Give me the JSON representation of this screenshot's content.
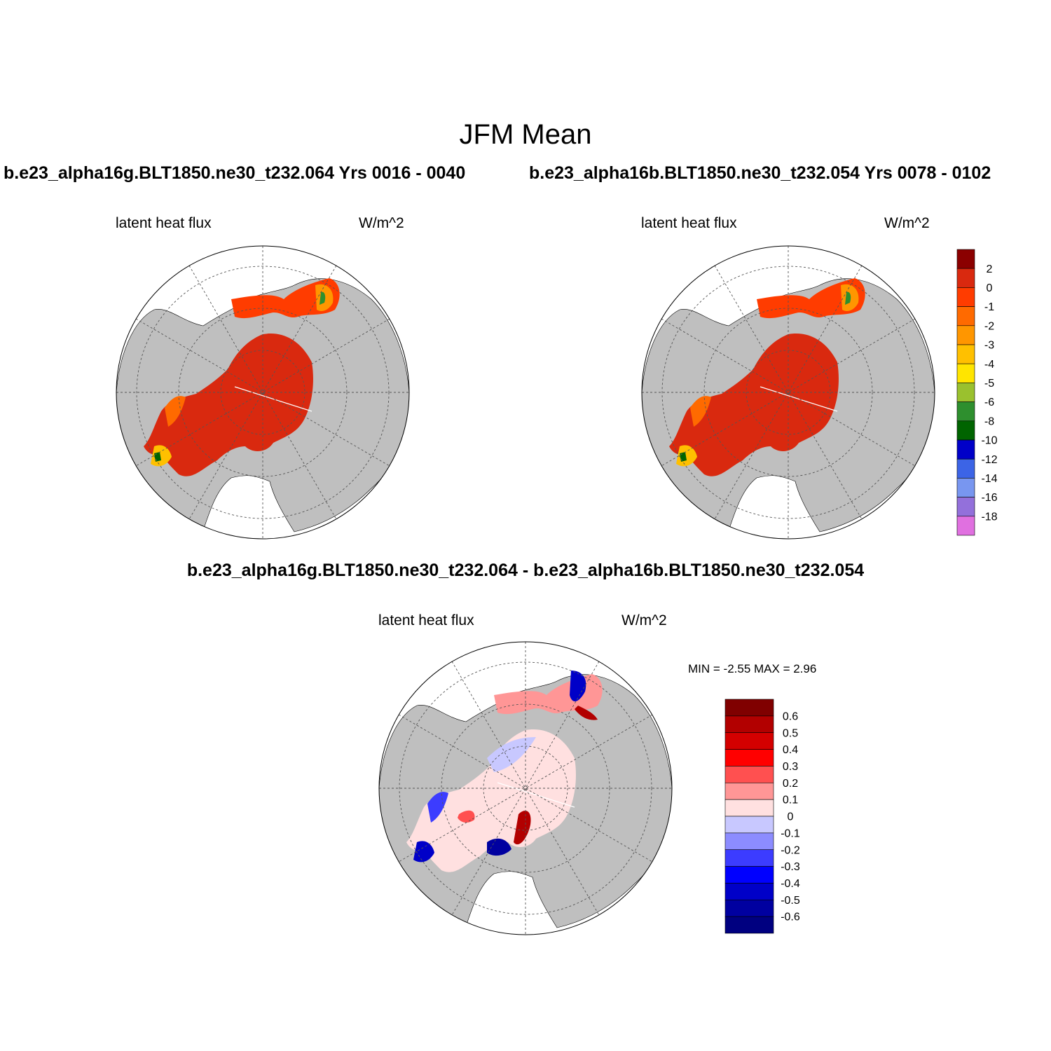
{
  "figure": {
    "title": "JFM Mean"
  },
  "panels": [
    {
      "id": "case1",
      "title": "b.e23_alpha16g.BLT1850.ne30_t232.064  Yrs 0016 - 0040",
      "left_label": "latent heat flux",
      "right_label": "W/m^2"
    },
    {
      "id": "case2",
      "title": "b.e23_alpha16b.BLT1850.ne30_t232.054  Yrs 0078 - 0102",
      "left_label": "latent heat flux",
      "right_label": "W/m^2"
    },
    {
      "id": "diff",
      "title": "b.e23_alpha16g.BLT1850.ne30_t232.064 - b.e23_alpha16b.BLT1850.ne30_t232.054",
      "left_label": "latent heat flux",
      "right_label": "W/m^2",
      "stats_text": "MIN =  -2.55 MAX =   2.96"
    }
  ],
  "chart_data": [
    {
      "type": "heatmap",
      "projection": "north polar stereographic",
      "title": "b.e23_alpha16g.BLT1850.ne30_t232.064  Yrs 0016 - 0040",
      "variable": "latent heat flux",
      "units": "W/m^2",
      "colorbar": {
        "labels": [
          "2",
          "0",
          "-1",
          "-2",
          "-3",
          "-4",
          "-5",
          "-6",
          "-8",
          "-10",
          "-12",
          "-14",
          "-16",
          "-18"
        ],
        "colors": [
          "#8b0000",
          "#d9290f",
          "#ff3c00",
          "#ff6a00",
          "#ff9600",
          "#ffc000",
          "#ffe500",
          "#9ac12e",
          "#2e8f2e",
          "#006400",
          "#0000c8",
          "#3c64e6",
          "#7896f0",
          "#9370db",
          "#e070e0"
        ]
      }
    },
    {
      "type": "heatmap",
      "projection": "north polar stereographic",
      "title": "b.e23_alpha16b.BLT1850.ne30_t232.054  Yrs 0078 - 0102",
      "variable": "latent heat flux",
      "units": "W/m^2"
    },
    {
      "type": "heatmap",
      "projection": "north polar stereographic",
      "title": "b.e23_alpha16g.BLT1850.ne30_t232.064 - b.e23_alpha16b.BLT1850.ne30_t232.054",
      "variable": "latent heat flux",
      "units": "W/m^2",
      "min": -2.55,
      "max": 2.96,
      "colorbar": {
        "labels": [
          "0.6",
          "0.5",
          "0.4",
          "0.3",
          "0.2",
          "0.1",
          "0",
          "-0.1",
          "-0.2",
          "-0.3",
          "-0.4",
          "-0.5",
          "-0.6"
        ],
        "colors": [
          "#800000",
          "#b20000",
          "#d40000",
          "#ff0000",
          "#ff5050",
          "#ff9696",
          "#ffe0e0",
          "#c8c8ff",
          "#8c8cff",
          "#3c3cff",
          "#0000ff",
          "#0000c8",
          "#0000a0",
          "#000080"
        ]
      }
    }
  ]
}
